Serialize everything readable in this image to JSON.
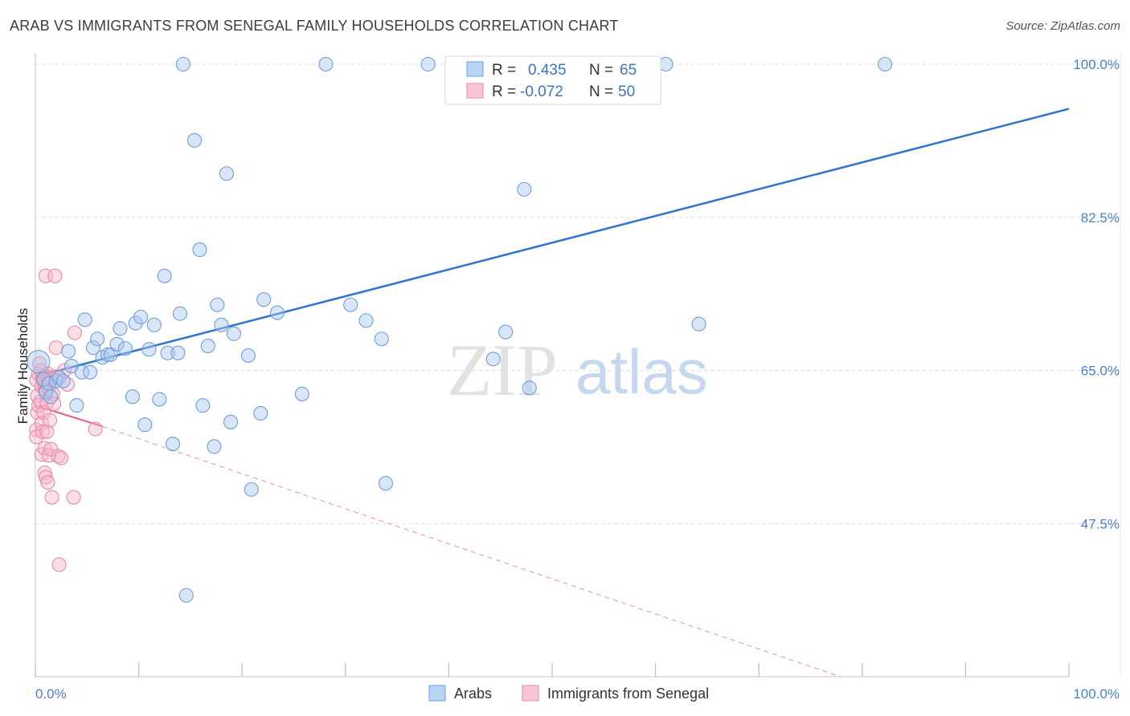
{
  "title": "ARAB VS IMMIGRANTS FROM SENEGAL FAMILY HOUSEHOLDS CORRELATION CHART",
  "source": "Source: ZipAtlas.com",
  "watermark": {
    "zip": "ZIP",
    "atlas": "atlas"
  },
  "colors": {
    "blue": "#a9c8f0",
    "blue_stroke": "#6f9fd8",
    "blue_line": "#2f74d0",
    "pink": "#f6b8ca",
    "pink_stroke": "#e88aa8",
    "pink_line": "#e8608a",
    "axis_text": "#4a7fd0"
  },
  "legend": {
    "rows": [
      {
        "r_label": "R =",
        "r_value": "0.435",
        "n_label": "N =",
        "n_value": "65"
      },
      {
        "r_label": "R =",
        "r_value": "-0.072",
        "n_label": "N =",
        "n_value": "50"
      }
    ]
  },
  "bottom_legend": [
    "Arabs",
    "Immigrants from Senegal"
  ],
  "chart_data": {
    "type": "scatter",
    "title": "ARAB VS IMMIGRANTS FROM SENEGAL FAMILY HOUSEHOLDS CORRELATION CHART",
    "xlabel": "",
    "ylabel": "Family Households",
    "xlim": [
      0,
      100
    ],
    "ylim": [
      30,
      100
    ],
    "x_tick_labels": [
      "0.0%",
      "100.0%"
    ],
    "y_ticks": [
      47.5,
      65.0,
      82.5,
      100.0
    ],
    "y_tick_labels": [
      "47.5%",
      "65.0%",
      "82.5%",
      "100.0%"
    ],
    "grid": true,
    "series": [
      {
        "name": "Arabs",
        "points": [
          [
            0.3,
            66.0
          ],
          [
            0.8,
            64.0
          ],
          [
            1.0,
            62.5
          ],
          [
            1.3,
            63.5
          ],
          [
            1.5,
            62.0
          ],
          [
            2.0,
            63.8
          ],
          [
            2.3,
            64.2
          ],
          [
            2.7,
            63.8
          ],
          [
            3.2,
            67.2
          ],
          [
            3.5,
            65.5
          ],
          [
            4.0,
            61.0
          ],
          [
            4.5,
            64.8
          ],
          [
            4.8,
            70.8
          ],
          [
            5.3,
            64.8
          ],
          [
            5.6,
            67.6
          ],
          [
            6.0,
            68.6
          ],
          [
            6.5,
            66.5
          ],
          [
            7.0,
            66.8
          ],
          [
            7.3,
            66.8
          ],
          [
            7.9,
            68.0
          ],
          [
            8.2,
            69.8
          ],
          [
            8.7,
            67.5
          ],
          [
            9.4,
            62.0
          ],
          [
            9.7,
            70.4
          ],
          [
            10.2,
            71.1
          ],
          [
            10.6,
            58.8
          ],
          [
            11.0,
            67.4
          ],
          [
            11.5,
            70.2
          ],
          [
            12.0,
            61.7
          ],
          [
            12.5,
            75.8
          ],
          [
            12.8,
            67.0
          ],
          [
            13.3,
            56.6
          ],
          [
            13.8,
            67.0
          ],
          [
            14.0,
            71.5
          ],
          [
            14.3,
            100.0
          ],
          [
            14.6,
            39.3
          ],
          [
            15.4,
            91.3
          ],
          [
            15.9,
            78.8
          ],
          [
            16.2,
            61.0
          ],
          [
            16.7,
            67.8
          ],
          [
            17.3,
            56.3
          ],
          [
            17.6,
            72.5
          ],
          [
            18.0,
            70.2
          ],
          [
            18.5,
            87.5
          ],
          [
            18.9,
            59.1
          ],
          [
            19.2,
            69.2
          ],
          [
            20.6,
            66.7
          ],
          [
            20.9,
            51.4
          ],
          [
            21.8,
            60.1
          ],
          [
            22.1,
            73.1
          ],
          [
            23.4,
            71.6
          ],
          [
            25.8,
            62.3
          ],
          [
            28.1,
            100.0
          ],
          [
            30.5,
            72.5
          ],
          [
            32.0,
            70.7
          ],
          [
            33.5,
            68.6
          ],
          [
            33.9,
            52.1
          ],
          [
            38.0,
            100.0
          ],
          [
            44.3,
            66.3
          ],
          [
            45.5,
            69.4
          ],
          [
            47.3,
            85.7
          ],
          [
            47.8,
            63.0
          ],
          [
            61.0,
            100.0
          ],
          [
            64.2,
            70.3
          ],
          [
            82.2,
            100.0
          ]
        ],
        "trend": {
          "x": [
            0,
            100
          ],
          "y": [
            64.3,
            94.9
          ]
        }
      },
      {
        "name": "Immigrants from Senegal",
        "points": [
          [
            0.1,
            63.9
          ],
          [
            0.1,
            58.2
          ],
          [
            0.1,
            57.4
          ],
          [
            0.2,
            60.2
          ],
          [
            0.2,
            62.1
          ],
          [
            0.3,
            61.0
          ],
          [
            0.3,
            64.6
          ],
          [
            0.4,
            65.8
          ],
          [
            0.5,
            65.0
          ],
          [
            0.5,
            61.4
          ],
          [
            0.6,
            63.2
          ],
          [
            0.6,
            55.4
          ],
          [
            0.6,
            59.0
          ],
          [
            0.7,
            58.0
          ],
          [
            0.7,
            64.2
          ],
          [
            0.8,
            63.8
          ],
          [
            0.8,
            60.2
          ],
          [
            0.9,
            56.1
          ],
          [
            0.9,
            63.0
          ],
          [
            0.9,
            53.3
          ],
          [
            1.0,
            52.8
          ],
          [
            1.0,
            62.7
          ],
          [
            1.0,
            64.4
          ],
          [
            1.0,
            75.8
          ],
          [
            1.1,
            61.3
          ],
          [
            1.1,
            58.0
          ],
          [
            1.2,
            52.2
          ],
          [
            1.2,
            64.6
          ],
          [
            1.3,
            55.3
          ],
          [
            1.3,
            64.0
          ],
          [
            1.3,
            63.0
          ],
          [
            1.4,
            63.6
          ],
          [
            1.4,
            59.3
          ],
          [
            1.5,
            64.2
          ],
          [
            1.5,
            56.0
          ],
          [
            1.6,
            50.5
          ],
          [
            1.6,
            64.0
          ],
          [
            1.7,
            62.3
          ],
          [
            1.8,
            61.2
          ],
          [
            1.9,
            75.8
          ],
          [
            2.0,
            67.6
          ],
          [
            2.1,
            64.3
          ],
          [
            2.2,
            55.2
          ],
          [
            2.3,
            42.8
          ],
          [
            2.5,
            55.0
          ],
          [
            2.8,
            65.0
          ],
          [
            3.1,
            63.4
          ],
          [
            3.7,
            50.5
          ],
          [
            3.8,
            69.3
          ],
          [
            5.8,
            58.3
          ]
        ],
        "trend": {
          "x": [
            0,
            6.5
          ],
          "y": [
            61.0,
            58.6
          ]
        },
        "trend_extended": {
          "x": [
            6.5,
            77.9
          ],
          "y": [
            58.6,
            30.0
          ]
        }
      }
    ]
  }
}
